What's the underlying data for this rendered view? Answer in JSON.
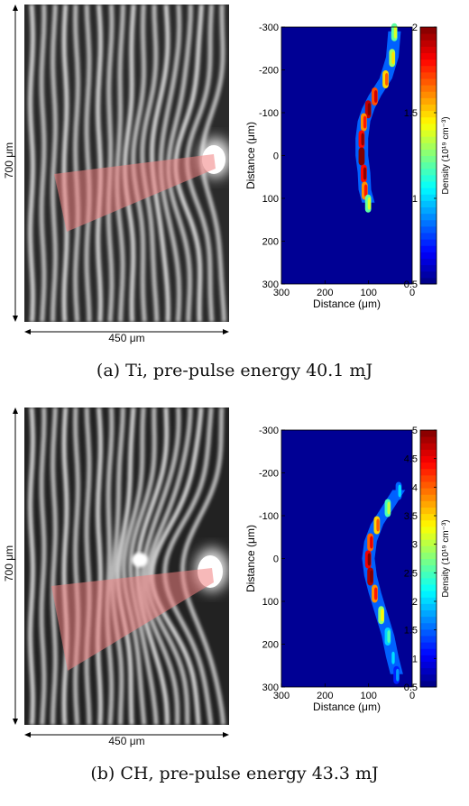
{
  "panels": [
    {
      "id": "a",
      "caption": "(a) Ti, pre-pulse energy 40.1 mJ",
      "interferogram": {
        "height_label": "700 μm",
        "width_label": "450 μm"
      },
      "chart_data": {
        "type": "heatmap",
        "title": "",
        "xlabel": "Distance (μm)",
        "ylabel": "Distance (μm)",
        "x_ticks": [
          300,
          200,
          100,
          0
        ],
        "y_ticks": [
          -300,
          -200,
          -100,
          0,
          100,
          200,
          300
        ],
        "xlim": [
          300,
          0
        ],
        "ylim": [
          -300,
          300
        ],
        "colorbar": {
          "label": "Density (10¹⁹ cm⁻³)",
          "ticks": [
            0.5,
            1,
            1.5,
            2
          ],
          "range": [
            0.5,
            2
          ]
        },
        "front_profile": [
          {
            "y": -290,
            "x": 40,
            "d": 1.2
          },
          {
            "y": -230,
            "x": 45,
            "d": 1.3
          },
          {
            "y": -180,
            "x": 60,
            "d": 1.5
          },
          {
            "y": -140,
            "x": 85,
            "d": 1.7
          },
          {
            "y": -110,
            "x": 100,
            "d": 1.9
          },
          {
            "y": -80,
            "x": 110,
            "d": 1.6
          },
          {
            "y": -40,
            "x": 115,
            "d": 1.8
          },
          {
            "y": 0,
            "x": 115,
            "d": 2.0
          },
          {
            "y": 40,
            "x": 110,
            "d": 1.8
          },
          {
            "y": 80,
            "x": 108,
            "d": 1.6
          },
          {
            "y": 110,
            "x": 100,
            "d": 1.2
          }
        ]
      }
    },
    {
      "id": "b",
      "caption": "(b) CH, pre-pulse energy 43.3 mJ",
      "interferogram": {
        "height_label": "700 μm",
        "width_label": "450 μm"
      },
      "chart_data": {
        "type": "heatmap",
        "title": "",
        "xlabel": "Distance (μm)",
        "ylabel": "Distance (μm)",
        "x_ticks": [
          300,
          200,
          100,
          0
        ],
        "y_ticks": [
          -300,
          -200,
          -100,
          0,
          100,
          200,
          300
        ],
        "xlim": [
          300,
          0
        ],
        "ylim": [
          -300,
          300
        ],
        "colorbar": {
          "label": "Density (10¹⁹ cm⁻³)",
          "ticks": [
            0.5,
            1,
            1.5,
            2,
            2.5,
            3,
            3.5,
            4,
            4.5,
            5
          ],
          "range": [
            0.5,
            5
          ]
        },
        "front_profile": [
          {
            "y": -160,
            "x": 30,
            "d": 1.5
          },
          {
            "y": -120,
            "x": 55,
            "d": 2.5
          },
          {
            "y": -80,
            "x": 80,
            "d": 3.5
          },
          {
            "y": -40,
            "x": 95,
            "d": 4.0
          },
          {
            "y": 0,
            "x": 100,
            "d": 4.5
          },
          {
            "y": 40,
            "x": 95,
            "d": 4.8
          },
          {
            "y": 80,
            "x": 85,
            "d": 3.8
          },
          {
            "y": 130,
            "x": 70,
            "d": 2.8
          },
          {
            "y": 180,
            "x": 55,
            "d": 2.0
          },
          {
            "y": 230,
            "x": 45,
            "d": 1.5
          },
          {
            "y": 270,
            "x": 35,
            "d": 1.2
          }
        ]
      }
    }
  ]
}
